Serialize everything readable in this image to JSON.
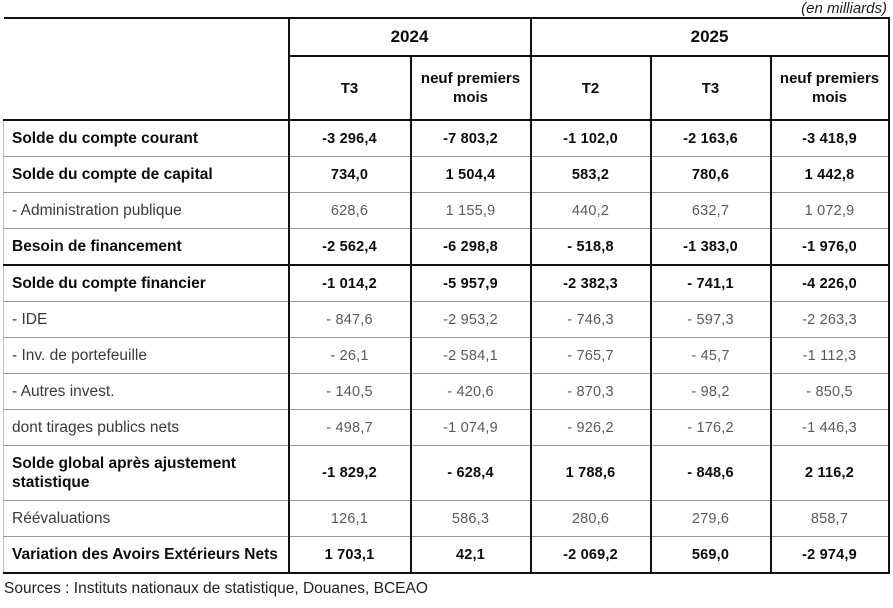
{
  "meta": {
    "unit_note": "(en milliards)",
    "sources": "Sources : Instituts nationaux de statistique, Douanes, BCEAO"
  },
  "table": {
    "year_groups": [
      {
        "label": "2024",
        "col_span": 2
      },
      {
        "label": "2025",
        "col_span": 3
      }
    ],
    "columns": [
      "T3",
      "neuf premiers mois",
      "T2",
      "T3",
      "neuf premiers mois"
    ],
    "rows": [
      {
        "label": "Solde du compte courant",
        "bold": true,
        "section_end": false,
        "values": [
          "-3 296,4",
          "-7 803,2",
          "-1 102,0",
          "-2 163,6",
          "-3 418,9"
        ]
      },
      {
        "label": "Solde du compte de capital",
        "bold": true,
        "section_end": false,
        "values": [
          "734,0",
          "1 504,4",
          "583,2",
          "780,6",
          "1 442,8"
        ]
      },
      {
        "label": "- Administration publique",
        "bold": false,
        "section_end": false,
        "values": [
          "628,6",
          "1 155,9",
          "440,2",
          "632,7",
          "1 072,9"
        ]
      },
      {
        "label": "Besoin de financement",
        "bold": true,
        "section_end": true,
        "values": [
          "-2 562,4",
          "-6 298,8",
          "- 518,8",
          "-1 383,0",
          "-1 976,0"
        ]
      },
      {
        "label": "Solde du compte financier",
        "bold": true,
        "section_end": false,
        "values": [
          "-1 014,2",
          "-5 957,9",
          "-2 382,3",
          "- 741,1",
          "-4 226,0"
        ]
      },
      {
        "label": "- IDE",
        "bold": false,
        "section_end": false,
        "values": [
          "- 847,6",
          "-2 953,2",
          "- 746,3",
          "- 597,3",
          "-2 263,3"
        ]
      },
      {
        "label": "- Inv. de portefeuille",
        "bold": false,
        "section_end": false,
        "values": [
          "- 26,1",
          "-2 584,1",
          "- 765,7",
          "- 45,7",
          "-1 112,3"
        ]
      },
      {
        "label": "- Autres invest.",
        "bold": false,
        "section_end": false,
        "values": [
          "- 140,5",
          "- 420,6",
          "- 870,3",
          "- 98,2",
          "- 850,5"
        ]
      },
      {
        "label": "dont tirages publics nets",
        "bold": false,
        "section_end": false,
        "values": [
          "- 498,7",
          "-1 074,9",
          "- 926,2",
          "- 176,2",
          "-1 446,3"
        ]
      },
      {
        "label": "Solde global après ajustement statistique",
        "bold": true,
        "section_end": false,
        "values": [
          "-1 829,2",
          "- 628,4",
          "1 788,6",
          "- 848,6",
          "2 116,2"
        ]
      },
      {
        "label": "Réévaluations",
        "bold": false,
        "section_end": false,
        "values": [
          "126,1",
          "586,3",
          "280,6",
          "279,6",
          "858,7"
        ]
      },
      {
        "label": "Variation des Avoirs Extérieurs Nets",
        "bold": true,
        "section_end": false,
        "values": [
          "1 703,1",
          "42,1",
          "-2 069,2",
          "569,0",
          "-2 974,9"
        ]
      }
    ]
  }
}
